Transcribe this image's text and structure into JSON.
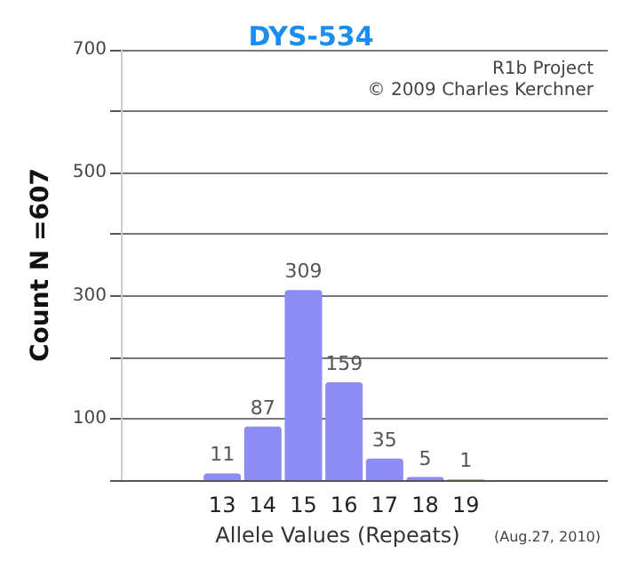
{
  "chart_data": {
    "type": "bar",
    "title": "DYS-534",
    "xlabel": "Allele Values (Repeats)",
    "ylabel": "Count N =607",
    "categories": [
      null,
      null,
      "13",
      "14",
      "15",
      "16",
      "17",
      "18",
      "19",
      null,
      null,
      null
    ],
    "values": [
      null,
      null,
      11,
      87,
      309,
      159,
      35,
      5,
      1,
      null,
      null,
      null
    ],
    "color": "#8c8cf2",
    "data_labels": true,
    "ylim": [
      0,
      700
    ],
    "yticks": [
      {
        "value": 0,
        "label": null
      },
      100,
      {
        "value": 200,
        "label": null
      },
      300,
      {
        "value": 400,
        "label": null
      },
      500,
      {
        "value": 600,
        "label": null
      },
      700
    ],
    "grid": "y",
    "annotations": [
      "R1b Project",
      "© 2009 Charles Kerchner",
      "(Aug.27, 2010)"
    ]
  }
}
